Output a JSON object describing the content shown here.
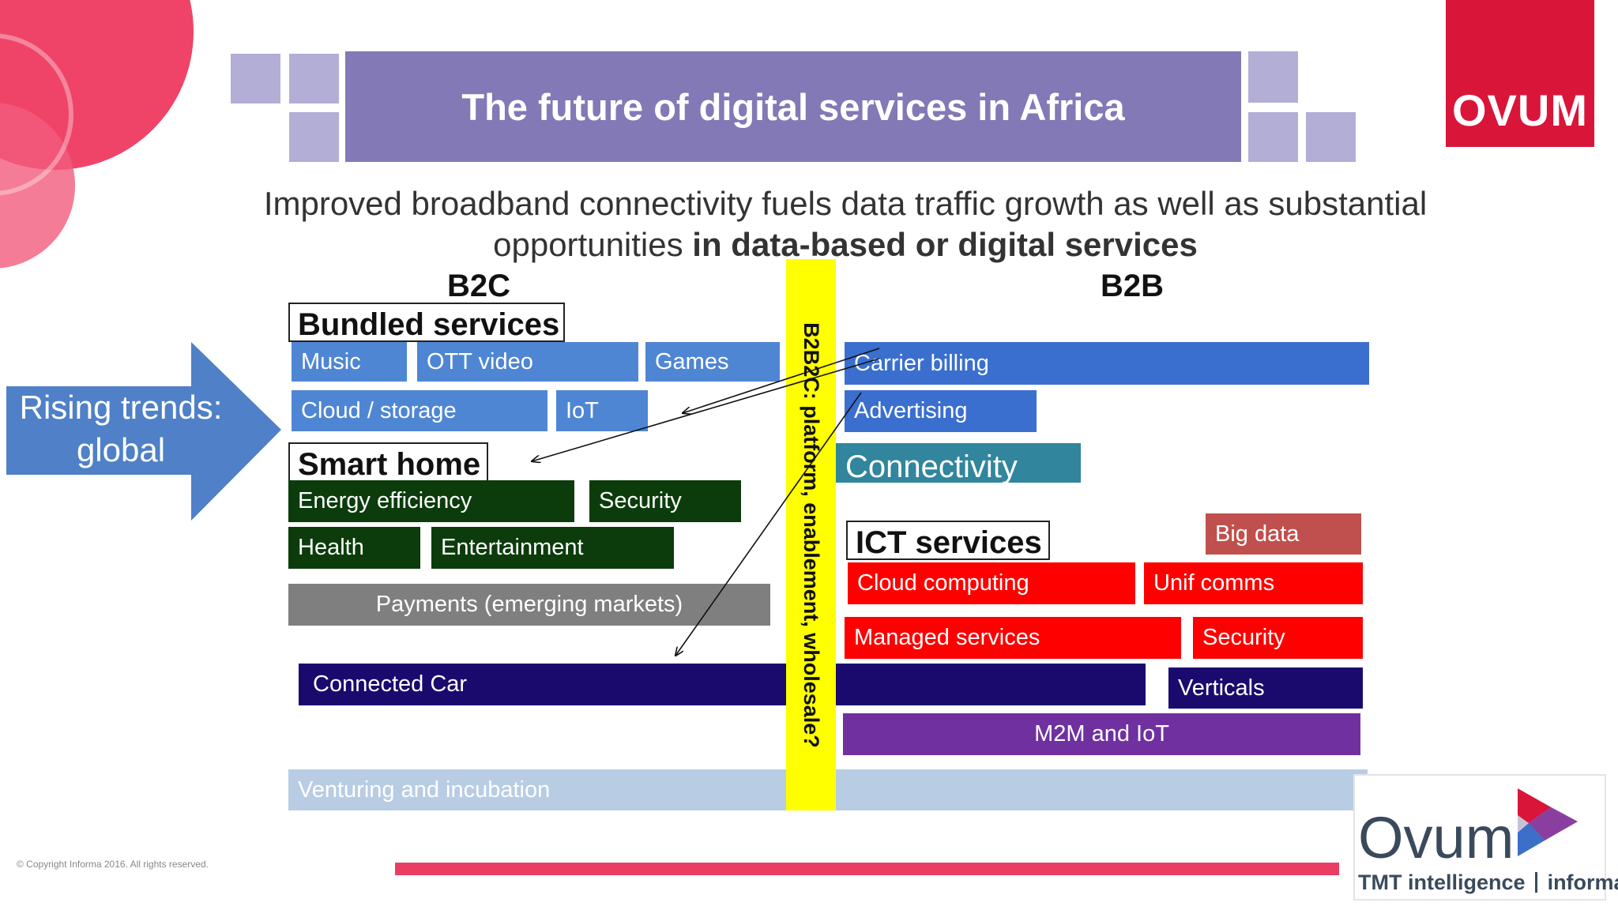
{
  "title": "The future of digital services in Africa",
  "subtitle": {
    "line1": "Improved broadband connectivity fuels data traffic growth as well as substantial",
    "line2_plain": "opportunities ",
    "line2_bold": "in data-based or digital services"
  },
  "columns": {
    "b2c": "B2C",
    "b2b": "B2B"
  },
  "arrow_label": {
    "line1": "Rising trends:",
    "line2": "global"
  },
  "divider_label": "B2B2C: platform, enablement, wholesale?",
  "b2c": {
    "bundled": {
      "heading": "Bundled services",
      "items": [
        "Music",
        "OTT video",
        "Games",
        "Cloud / storage",
        "IoT"
      ]
    },
    "smart_home": {
      "heading": "Smart home",
      "items": [
        "Energy efficiency",
        "Security",
        "Health",
        "Entertainment"
      ]
    },
    "payments": "Payments (emerging markets)",
    "connected_car": "Connected Car"
  },
  "b2b": {
    "carrier_billing": "Carrier billing",
    "advertising": "Advertising",
    "connectivity": "Connectivity",
    "big_data": "Big data",
    "ict": {
      "heading": "ICT services",
      "items": [
        "Cloud computing",
        "Unif comms",
        "Managed services",
        "Security"
      ]
    },
    "verticals": "Verticals",
    "m2m": "M2M and IoT"
  },
  "venturing": "Venturing and incubation",
  "copyright": "© Copyright Informa 2016. All rights reserved.",
  "logos": {
    "ovum_red": "OVUM",
    "ovum_word": "Ovum",
    "tagline_left": "TMT intelligence",
    "tagline_right": "informa"
  },
  "colors": {
    "title_bar": "#8279b6",
    "square": "#b3aed6",
    "music_blue": "#4f86d4",
    "carrier_blue": "#3a6fd0",
    "dark_green": "#0c3c0c",
    "gray": "#7f7f7f",
    "navy": "#1a0a6e",
    "red": "#fe0000",
    "big_data": "#c0504d",
    "teal": "#31859c",
    "purple": "#7030a0",
    "light_blue": "#b8cce4",
    "yellow": "#ffff00",
    "ovum_red": "#d9153a",
    "pink_bar": "#ea3d63"
  }
}
